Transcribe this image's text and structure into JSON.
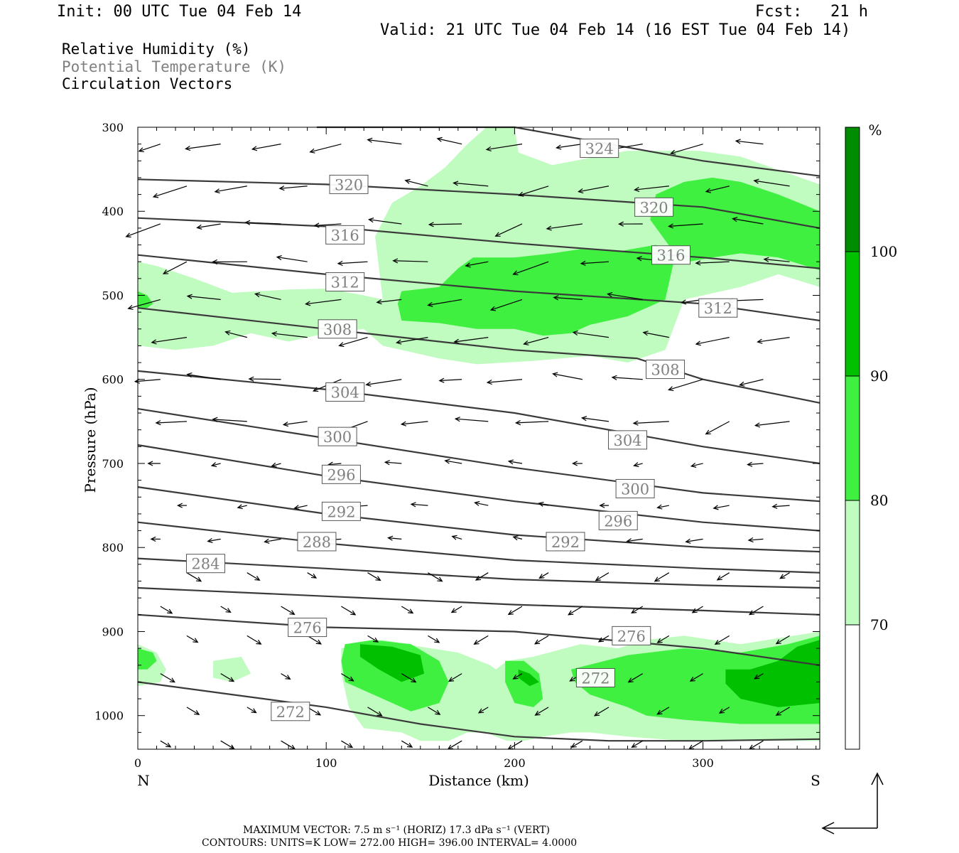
{
  "header": {
    "init": "Init: 00 UTC Tue 04 Feb 14",
    "fcst": "Fcst:   21 h",
    "valid": "Valid: 21 UTC Tue 04 Feb 14 (16 EST Tue 04 Feb 14)"
  },
  "fields": {
    "rh": "Relative Humidity (%)",
    "theta": "Potential Temperature (K)",
    "vectors": "Circulation Vectors"
  },
  "footer": {
    "vector_line": "MAXIMUM VECTOR:   7.5 m s⁻¹ (HORIZ)          17.3 dPa s⁻¹ (VERT)",
    "contour_line": "CONTOURS:  UNITS=K  LOW=  272.00        HIGH=  396.00        INTERVAL=    4.0000"
  },
  "colors": {
    "rh70": "#c0fbc0",
    "rh80": "#40f040",
    "rh90": "#00c000",
    "rh100": "#008c00",
    "contour": "#3a3a3a",
    "theta_label": "#808080"
  },
  "chart_data": {
    "type": "cross-section",
    "xlabel": "Distance (km)",
    "ylabel": "Pressure (hPa)",
    "x_ticks": [
      "0",
      "100",
      "200",
      "300"
    ],
    "y_ticks": [
      "300",
      "400",
      "500",
      "600",
      "700",
      "800",
      "900",
      "1000"
    ],
    "xlim": [
      0,
      362
    ],
    "ylim": [
      300,
      1040
    ],
    "endpoints": {
      "left": "N",
      "right": "S"
    },
    "colorbar": {
      "unit": "%",
      "levels": [
        "70",
        "80",
        "90",
        "100"
      ]
    },
    "theta_contours": [
      {
        "value": 324,
        "x": [
          95,
          200,
          300,
          362
        ],
        "p": [
          300,
          300,
          340,
          358
        ]
      },
      {
        "value": 320,
        "x": [
          0,
          100,
          200,
          300,
          362
        ],
        "p": [
          362,
          368,
          380,
          395,
          420
        ]
      },
      {
        "value": 316,
        "x": [
          0,
          100,
          200,
          300,
          362
        ],
        "p": [
          408,
          418,
          438,
          455,
          468
        ]
      },
      {
        "value": 312,
        "x": [
          0,
          100,
          200,
          300,
          362
        ],
        "p": [
          452,
          475,
          495,
          510,
          530
        ]
      },
      {
        "value": 308,
        "x": [
          0,
          100,
          200,
          265,
          300,
          362
        ],
        "p": [
          515,
          540,
          565,
          575,
          600,
          628
        ]
      },
      {
        "value": 304,
        "x": [
          0,
          100,
          200,
          300,
          362
        ],
        "p": [
          590,
          612,
          640,
          680,
          700
        ]
      },
      {
        "value": 300,
        "x": [
          0,
          100,
          200,
          300,
          362
        ],
        "p": [
          635,
          670,
          705,
          735,
          745
        ]
      },
      {
        "value": 296,
        "x": [
          0,
          100,
          200,
          300,
          362
        ],
        "p": [
          678,
          715,
          745,
          770,
          780
        ]
      },
      {
        "value": 292,
        "x": [
          0,
          100,
          200,
          300,
          362
        ],
        "p": [
          728,
          760,
          785,
          800,
          805
        ]
      },
      {
        "value": 288,
        "x": [
          0,
          100,
          200,
          300,
          362
        ],
        "p": [
          770,
          795,
          815,
          825,
          830
        ]
      },
      {
        "value": 284,
        "x": [
          0,
          100,
          200,
          300,
          362
        ],
        "p": [
          813,
          825,
          838,
          845,
          848
        ]
      },
      {
        "value": 280,
        "x": [
          0,
          100,
          200,
          300,
          362
        ],
        "p": [
          848,
          858,
          868,
          875,
          880
        ]
      },
      {
        "value": 276,
        "x": [
          0,
          100,
          200,
          300,
          362
        ],
        "p": [
          880,
          895,
          900,
          920,
          940
        ]
      },
      {
        "value": 272,
        "x": [
          0,
          50,
          100,
          150,
          200,
          250,
          300,
          362
        ],
        "p": [
          960,
          975,
          990,
          1010,
          1025,
          1030,
          1030,
          1028
        ]
      }
    ],
    "theta_labels": [
      {
        "text": "324",
        "x": 245,
        "p": 325
      },
      {
        "text": "320",
        "x": 112,
        "p": 368
      },
      {
        "text": "320",
        "x": 274,
        "p": 395
      },
      {
        "text": "316",
        "x": 110,
        "p": 428
      },
      {
        "text": "316",
        "x": 283,
        "p": 452
      },
      {
        "text": "312",
        "x": 110,
        "p": 484
      },
      {
        "text": "312",
        "x": 308,
        "p": 515
      },
      {
        "text": "308",
        "x": 106,
        "p": 540
      },
      {
        "text": "308",
        "x": 280,
        "p": 588
      },
      {
        "text": "304",
        "x": 110,
        "p": 615
      },
      {
        "text": "304",
        "x": 260,
        "p": 672
      },
      {
        "text": "300",
        "x": 106,
        "p": 668
      },
      {
        "text": "300",
        "x": 264,
        "p": 730
      },
      {
        "text": "296",
        "x": 108,
        "p": 713
      },
      {
        "text": "296",
        "x": 255,
        "p": 768
      },
      {
        "text": "292",
        "x": 108,
        "p": 757
      },
      {
        "text": "292",
        "x": 227,
        "p": 793
      },
      {
        "text": "288",
        "x": 95,
        "p": 793
      },
      {
        "text": "284",
        "x": 36,
        "p": 819
      },
      {
        "text": "276",
        "x": 90,
        "p": 895
      },
      {
        "text": "276",
        "x": 262,
        "p": 905
      },
      {
        "text": "272",
        "x": 243,
        "p": 955
      },
      {
        "text": "272",
        "x": 81,
        "p": 995
      }
    ],
    "rh_regions": [
      {
        "level": "70",
        "x": [
          95,
          200,
          202,
          220,
          260,
          298,
          320,
          362,
          362,
          340,
          320,
          290,
          280,
          260,
          240,
          210,
          180,
          160,
          150,
          130,
          120,
          100,
          80,
          60,
          40,
          20,
          0,
          0,
          10,
          30,
          50,
          80,
          100,
          120,
          130,
          126,
          135,
          150,
          163,
          175,
          185,
          182,
          150,
          132
        ],
        "p": [
          300,
          300,
          330,
          345,
          328,
          328,
          335,
          368,
          490,
          475,
          490,
          505,
          565,
          580,
          572,
          578,
          582,
          575,
          570,
          560,
          540,
          545,
          555,
          545,
          560,
          565,
          560,
          460,
          465,
          480,
          497,
          493,
          492,
          500,
          505,
          430,
          390,
          370,
          348,
          320,
          300,
          300,
          300,
          300
        ]
      },
      {
        "level": "70",
        "x": [
          108,
          130,
          150,
          170,
          187,
          190,
          196,
          210,
          235,
          255,
          270,
          290,
          320,
          362,
          362,
          320,
          290,
          260,
          240,
          230,
          215,
          205,
          196,
          190,
          185,
          175,
          165,
          150,
          140,
          120,
          112,
          108
        ],
        "p": [
          920,
          910,
          918,
          925,
          940,
          945,
          935,
          930,
          915,
          920,
          910,
          905,
          915,
          900,
          1030,
          1030,
          1030,
          1025,
          1020,
          1020,
          1025,
          1030,
          1030,
          1025,
          1020,
          1020,
          1030,
          1030,
          1020,
          1015,
          990,
          950
        ]
      },
      {
        "level": "70",
        "x": [
          0,
          10,
          15,
          12,
          0
        ],
        "p": [
          915,
          925,
          945,
          960,
          965
        ]
      },
      {
        "level": "70",
        "x": [
          40,
          55,
          60,
          50,
          40
        ],
        "p": [
          935,
          930,
          950,
          960,
          955
        ]
      },
      {
        "level": "80",
        "x": [
          140,
          160,
          170,
          178,
          200,
          220,
          235,
          255,
          262,
          275,
          285,
          280,
          260,
          240,
          230,
          215,
          200,
          180,
          160,
          140,
          138
        ],
        "p": [
          495,
          490,
          468,
          455,
          455,
          450,
          445,
          448,
          445,
          440,
          455,
          505,
          525,
          535,
          545,
          548,
          540,
          540,
          533,
          530,
          510
        ]
      },
      {
        "level": "80",
        "x": [
          275,
          290,
          305,
          320,
          340,
          362,
          362,
          340,
          320,
          305,
          292,
          285,
          272
        ],
        "p": [
          380,
          365,
          360,
          365,
          380,
          400,
          470,
          455,
          450,
          455,
          460,
          450,
          410
        ]
      },
      {
        "level": "80",
        "x": [
          0,
          5,
          8,
          5,
          0
        ],
        "p": [
          495,
          500,
          510,
          515,
          515
        ]
      },
      {
        "level": "80",
        "x": [
          110,
          125,
          145,
          160,
          165,
          160,
          145,
          125,
          110,
          108
        ],
        "p": [
          915,
          910,
          915,
          935,
          960,
          985,
          995,
          975,
          960,
          935
        ]
      },
      {
        "level": "80",
        "x": [
          195,
          205,
          213,
          215,
          210,
          200,
          195
        ],
        "p": [
          935,
          935,
          950,
          980,
          990,
          985,
          960
        ]
      },
      {
        "level": "80",
        "x": [
          0,
          8,
          10,
          5,
          0
        ],
        "p": [
          920,
          925,
          935,
          945,
          945
        ]
      },
      {
        "level": "80",
        "x": [
          230,
          260,
          290,
          320,
          345,
          362,
          362,
          320,
          290,
          270,
          260,
          240,
          232
        ],
        "p": [
          945,
          928,
          920,
          925,
          915,
          905,
          1010,
          1010,
          1005,
          1000,
          990,
          975,
          960
        ]
      },
      {
        "level": "90",
        "x": [
          118,
          135,
          150,
          152,
          140,
          128,
          118
        ],
        "p": [
          915,
          918,
          928,
          950,
          960,
          945,
          930
        ]
      },
      {
        "level": "90",
        "x": [
          312,
          325,
          340,
          350,
          362,
          362,
          340,
          320,
          312
        ],
        "p": [
          945,
          945,
          935,
          918,
          910,
          985,
          990,
          980,
          962
        ]
      },
      {
        "level": "90",
        "x": [
          202,
          208,
          213,
          208,
          202
        ],
        "p": [
          945,
          950,
          960,
          965,
          955
        ]
      }
    ]
  }
}
